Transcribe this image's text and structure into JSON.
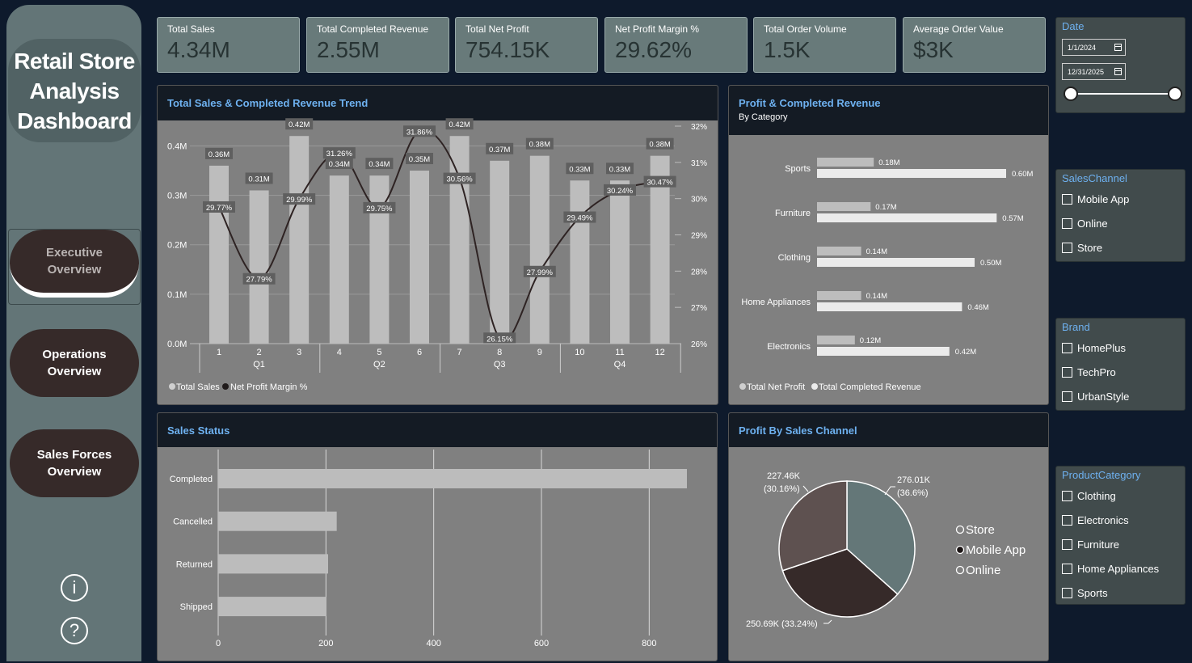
{
  "nav": {
    "brand": "Retail Store\nAnalysis\nDashboard",
    "buttons": [
      "Executive\nOverview",
      "Operations\nOverview",
      "Sales Forces\nOverview"
    ],
    "info_glyph": "i",
    "help_glyph": "?"
  },
  "kpis": [
    {
      "title": "Total Sales",
      "value": "4.34M"
    },
    {
      "title": "Total Completed Revenue",
      "value": "2.55M"
    },
    {
      "title": "Total Net Profit",
      "value": "754.15K"
    },
    {
      "title": "Net Profit Margin %",
      "value": "29.62%"
    },
    {
      "title": "Total Order Volume",
      "value": "1.5K"
    },
    {
      "title": "Average Order Value",
      "value": "$3K"
    }
  ],
  "trend": {
    "title": "Total Sales & Completed Revenue Trend"
  },
  "category": {
    "title": "Profit & Completed Revenue",
    "subtitle": "By Category"
  },
  "status": {
    "title": "Sales Status"
  },
  "channel": {
    "title": "Profit By Sales Channel"
  },
  "slicers": {
    "date": {
      "title": "Date",
      "from": "1/1/2024",
      "to": "12/31/2025"
    },
    "sales_channel": {
      "title": "SalesChannel",
      "items": [
        "Mobile App",
        "Online",
        "Store"
      ]
    },
    "brand": {
      "title": "Brand",
      "items": [
        "HomePlus",
        "TechPro",
        "UrbanStyle"
      ]
    },
    "product_category": {
      "title": "ProductCategory",
      "items": [
        "Clothing",
        "Electronics",
        "Furniture",
        "Home Appliances",
        "Sports"
      ]
    }
  },
  "chart_data": [
    {
      "type": "bar",
      "title": "Total Sales & Completed Revenue Trend",
      "categories": [
        "1",
        "2",
        "3",
        "4",
        "5",
        "6",
        "7",
        "8",
        "9",
        "10",
        "11",
        "12"
      ],
      "quarters": [
        "Q1",
        "Q2",
        "Q3",
        "Q4"
      ],
      "y_ticks": [
        "0.0M",
        "0.1M",
        "0.2M",
        "0.3M",
        "0.4M"
      ],
      "y2_ticks": [
        "26%",
        "27%",
        "28%",
        "29%",
        "30%",
        "31%",
        "32%"
      ],
      "ylim": [
        0,
        0.44
      ],
      "y2lim": [
        26,
        32
      ],
      "series": [
        {
          "name": "Total Sales",
          "kind": "bar",
          "values": [
            0.36,
            0.31,
            0.42,
            0.34,
            0.34,
            0.35,
            0.42,
            0.37,
            0.38,
            0.33,
            0.33,
            0.38
          ],
          "labels": [
            "0.36M",
            "0.31M",
            "0.42M",
            "0.34M",
            "0.34M",
            "0.35M",
            "0.42M",
            "0.37M",
            "0.38M",
            "0.33M",
            "0.33M",
            "0.38M"
          ],
          "color": "#bdbdbd"
        },
        {
          "name": "Net Profit Margin %",
          "kind": "line",
          "values": [
            29.77,
            27.79,
            29.99,
            31.26,
            29.75,
            31.86,
            30.56,
            26.15,
            27.99,
            29.49,
            30.24,
            30.47
          ],
          "labels": [
            "29.77%",
            "27.79%",
            "29.99%",
            "31.26%",
            "29.75%",
            "31.86%",
            "30.56%",
            "26.15%",
            "27.99%",
            "29.49%",
            "30.24%",
            "30.47%"
          ],
          "color": "#2e2323"
        }
      ],
      "legend": "bottom-left"
    },
    {
      "type": "bar",
      "orientation": "horizontal",
      "title": "Profit & Completed Revenue",
      "subtitle": "By Category",
      "categories": [
        "Sports",
        "Furniture",
        "Clothing",
        "Home Appliances",
        "Electronics"
      ],
      "series": [
        {
          "name": "Total Net Profit",
          "values": [
            0.18,
            0.17,
            0.14,
            0.14,
            0.12
          ],
          "labels": [
            "0.18M",
            "0.17M",
            "0.14M",
            "0.14M",
            "0.12M"
          ],
          "color": "#bdbdbd"
        },
        {
          "name": "Total Completed Revenue",
          "values": [
            0.6,
            0.57,
            0.5,
            0.46,
            0.42
          ],
          "labels": [
            "0.60M",
            "0.57M",
            "0.50M",
            "0.46M",
            "0.42M"
          ],
          "color": "#ebebeb"
        }
      ],
      "legend": "bottom-left"
    },
    {
      "type": "bar",
      "orientation": "horizontal",
      "title": "Sales Status",
      "categories": [
        "Completed",
        "Cancelled",
        "Returned",
        "Shipped"
      ],
      "values": [
        870,
        220,
        204,
        201
      ],
      "x_ticks": [
        "0",
        "200",
        "400",
        "600",
        "800"
      ],
      "xlim": [
        0,
        900
      ]
    },
    {
      "type": "pie",
      "title": "Profit By Sales Channel",
      "slices": [
        {
          "name": "Store",
          "value": 276.01,
          "label": "276.01K",
          "pct": "(36.6%)",
          "color": "#647778"
        },
        {
          "name": "Mobile App",
          "value": 250.69,
          "label": "250.69K (33.24%)",
          "color": "#362a29"
        },
        {
          "name": "Online",
          "value": 227.46,
          "label": "227.46K",
          "pct": "(30.16%)",
          "color": "#5e5150"
        }
      ],
      "legend": "right"
    }
  ]
}
